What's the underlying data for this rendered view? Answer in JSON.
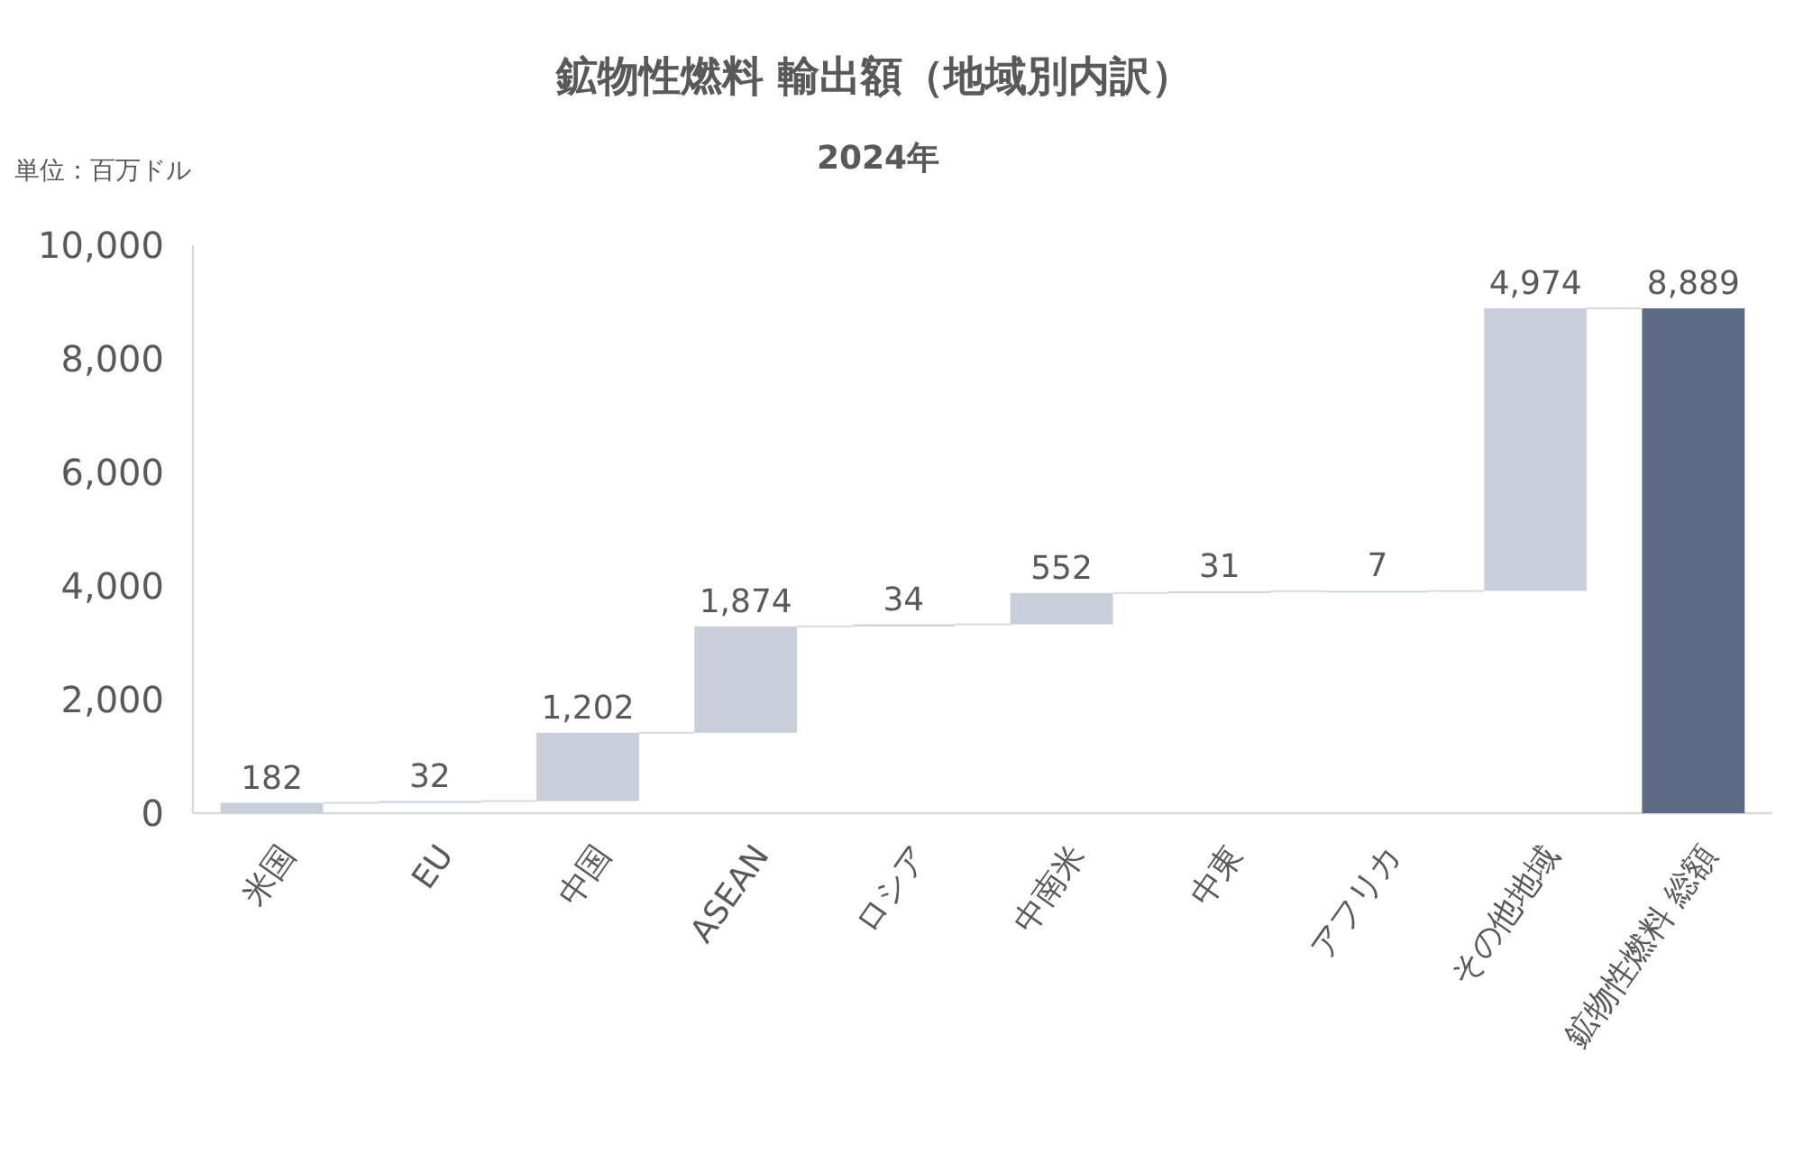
{
  "chart_data": {
    "type": "bar",
    "title": "鉱物性燃料 輸出額（地域別内訳）",
    "subtitle": "2024年",
    "annotations": [
      "単位：百万ドル"
    ],
    "categories": [
      "米国",
      "EU",
      "中国",
      "ASEAN",
      "ロシア",
      "中南米",
      "中東",
      "アフリカ",
      "その他地域",
      "鉱物性燃料 総額"
    ],
    "values": [
      182,
      32,
      1202,
      1874,
      34,
      552,
      31,
      7,
      4974,
      8889
    ],
    "base": [
      0,
      182,
      214,
      1416,
      3290,
      3324,
      3876,
      3907,
      3914,
      0
    ],
    "colors": [
      "#c8cfdb",
      "#c8cfdb",
      "#c8cfdb",
      "#c8cfdb",
      "#c8cfdb",
      "#c8cfdb",
      "#c8cfdb",
      "#c8cfdb",
      "#c8cfdb",
      "#5e6b88"
    ],
    "value_labels": [
      "182",
      "32",
      "1,202",
      "1,874",
      "34",
      "552",
      "31",
      "7",
      "4,974",
      "8,889"
    ],
    "ylim": [
      0,
      10000
    ],
    "yticks": [
      0,
      {
        "value": 2000,
        "label": "2,000"
      },
      {
        "value": 4000,
        "label": "4,000"
      },
      {
        "value": 6000,
        "label": "6,000"
      },
      {
        "value": 8000,
        "label": "8,000"
      },
      {
        "value": 10000,
        "label": "10,000"
      }
    ]
  }
}
